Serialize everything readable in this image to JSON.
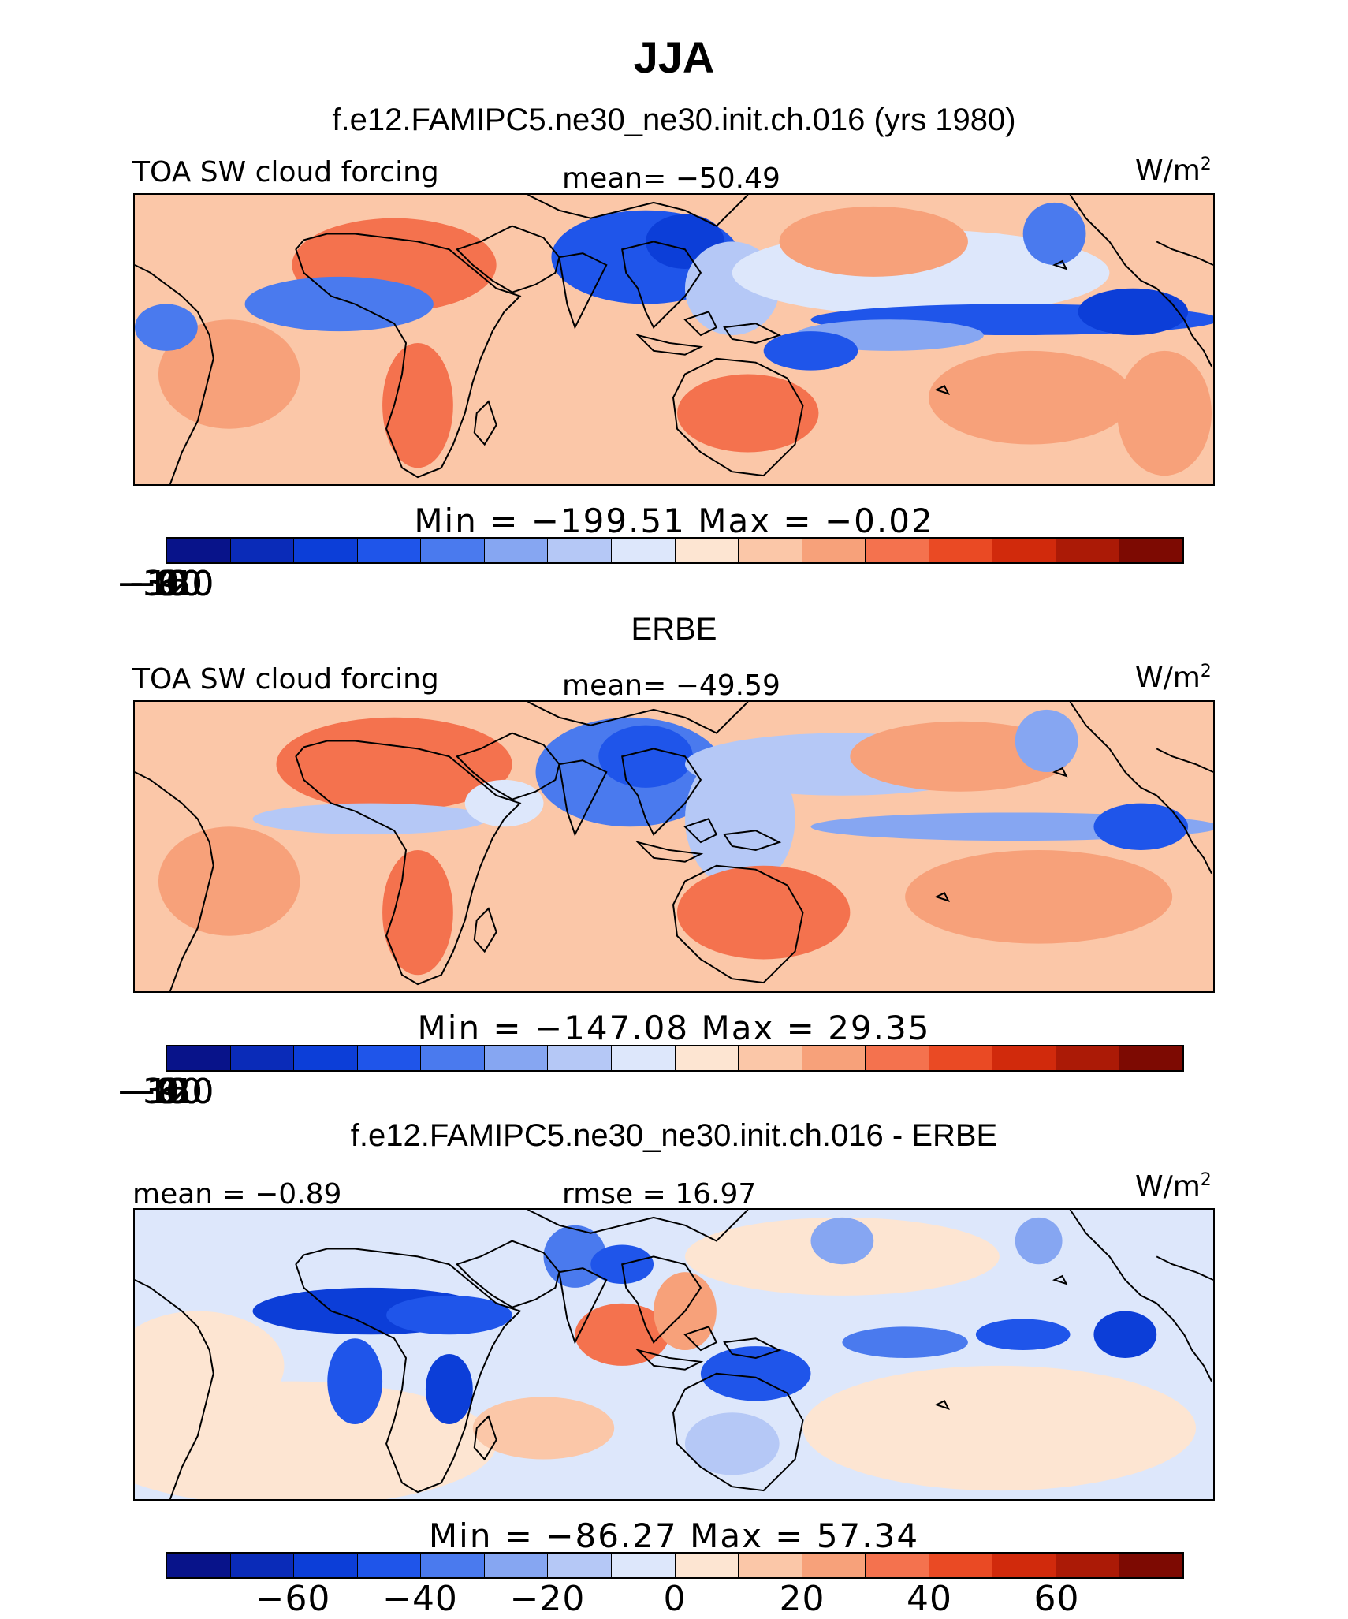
{
  "title": "JJA",
  "panels": [
    {
      "title": "f.e12.FAMIPC5.ne30_ne30.init.ch.016 (yrs 1980)",
      "left_label": "TOA SW cloud forcing",
      "center_label": "mean= −50.49",
      "units": "W/m",
      "units_sup": "2",
      "min_max": "Min = −199.51 Max = −0.02",
      "colorbar_ticks": [
        "−150",
        "−120",
        "−90",
        "−60",
        "−30",
        "0",
        "30"
      ]
    },
    {
      "title": "ERBE",
      "left_label": "TOA SW cloud forcing",
      "center_label": "mean= −49.59",
      "units": "W/m",
      "units_sup": "2",
      "min_max": "Min = −147.08 Max = 29.35",
      "colorbar_ticks": [
        "−150",
        "−120",
        "−90",
        "−60",
        "−30",
        "0",
        "30"
      ]
    },
    {
      "title": "f.e12.FAMIPC5.ne30_ne30.init.ch.016 - ERBE",
      "left_label": "mean = −0.89",
      "center_label": "rmse = 16.97",
      "units": "W/m",
      "units_sup": "2",
      "min_max": "Min = −86.27 Max = 57.34",
      "colorbar_ticks": [
        "−60",
        "−40",
        "−20",
        "0",
        "20",
        "40",
        "60"
      ]
    }
  ],
  "chart_data": [
    {
      "type": "heatmap",
      "title": "f.e12.FAMIPC5.ne30_ne30.init.ch.016 (yrs 1980)",
      "variable": "TOA SW cloud forcing",
      "units": "W/m2",
      "mean": -50.49,
      "min": -199.51,
      "max": -0.02,
      "contour_levels": [
        -170,
        -155,
        -140,
        -125,
        -110,
        -95,
        -80,
        -65,
        -50,
        -35,
        -20,
        -5,
        10,
        25,
        40
      ],
      "colorbar_ticks": [
        -150,
        -120,
        -90,
        -60,
        -30,
        0,
        30
      ]
    },
    {
      "type": "heatmap",
      "title": "ERBE",
      "variable": "TOA SW cloud forcing",
      "units": "W/m2",
      "mean": -49.59,
      "min": -147.08,
      "max": 29.35,
      "contour_levels": [
        -170,
        -155,
        -140,
        -125,
        -110,
        -95,
        -80,
        -65,
        -50,
        -35,
        -20,
        -5,
        10,
        25,
        40
      ],
      "colorbar_ticks": [
        -150,
        -120,
        -90,
        -60,
        -30,
        0,
        30
      ]
    },
    {
      "type": "heatmap",
      "title": "f.e12.FAMIPC5.ne30_ne30.init.ch.016 - ERBE",
      "units": "W/m2",
      "mean": -0.89,
      "rmse": 16.97,
      "min": -86.27,
      "max": 57.34,
      "contour_levels": [
        -70,
        -60,
        -50,
        -40,
        -30,
        -20,
        -10,
        0,
        10,
        20,
        30,
        40,
        50,
        60,
        70
      ],
      "colorbar_ticks": [
        -60,
        -40,
        -20,
        0,
        20,
        40,
        60
      ]
    }
  ],
  "colors": {
    "palette": [
      "#08138a",
      "#0a2bb8",
      "#0c3ed8",
      "#1f55ea",
      "#4a7aee",
      "#86a6f2",
      "#b5c8f6",
      "#dde7fb",
      "#fde5d2",
      "#fbc7a8",
      "#f7a17a",
      "#f4724e",
      "#ea4a24",
      "#d12a0c",
      "#ab1a06",
      "#7d0a02"
    ]
  }
}
